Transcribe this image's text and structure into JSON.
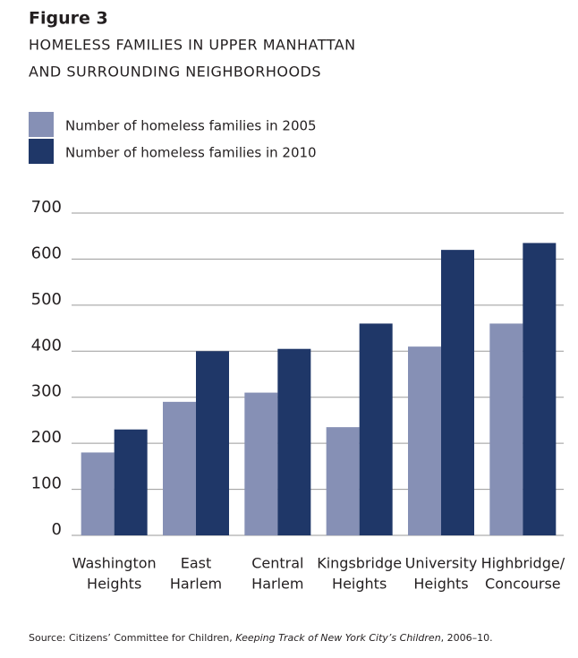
{
  "chart_data": {
    "type": "bar",
    "title": "Figure 3",
    "subtitle": [
      "HOMELESS FAMILIES IN UPPER MANHATTAN",
      "AND SURROUNDING NEIGHBORHOODS"
    ],
    "categories": [
      [
        "Washington",
        "Heights"
      ],
      [
        "East",
        "Harlem"
      ],
      [
        "Central",
        "Harlem"
      ],
      [
        "Kingsbridge",
        "Heights"
      ],
      [
        "University",
        "Heights"
      ],
      [
        "Highbridge/",
        "Concourse"
      ]
    ],
    "series": [
      {
        "name": "Number of homeless families in 2005",
        "color": "#8690b5",
        "values": [
          180,
          290,
          310,
          235,
          410,
          460
        ]
      },
      {
        "name": "Number of homeless families in 2010",
        "color": "#1f3768",
        "values": [
          230,
          400,
          405,
          460,
          620,
          635
        ]
      }
    ],
    "ylim": [
      0,
      700
    ],
    "yticks": [
      0,
      100,
      200,
      300,
      400,
      500,
      600,
      700
    ],
    "grid": true,
    "source": {
      "prefix": "Source: Citizens’ Committee for Children, ",
      "title": "Keeping Track of New York City’s Children",
      "suffix": ", 2006–10."
    }
  }
}
